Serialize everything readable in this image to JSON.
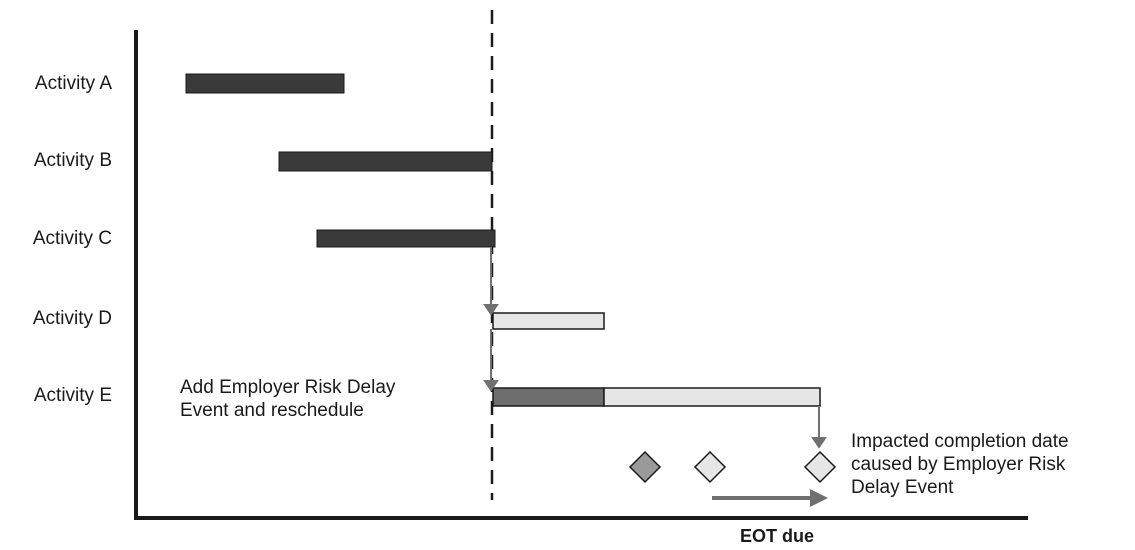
{
  "activities": [
    {
      "label": "Activity A"
    },
    {
      "label": "Activity B"
    },
    {
      "label": "Activity C"
    },
    {
      "label": "Activity D"
    },
    {
      "label": "Activity E"
    }
  ],
  "annotations": {
    "delay_event": "Add Employer Risk Delay\nEvent and reschedule",
    "impacted": "Impacted completion date\ncaused by Employer Risk\nDelay Event",
    "eot": "EOT due"
  },
  "colors": {
    "dark_bar": "#3a3a3a",
    "delay_bar": "#6e6e6e",
    "light_bar": "#e6e6e6",
    "milestone_dark": "#9a9a9a",
    "milestone_light": "#e6e6e6",
    "arrow": "#707070",
    "axis": "#1a1a1a"
  },
  "icons": {
    "milestones": [
      "diamond-milestone-dark",
      "diamond-milestone-light",
      "diamond-milestone-light"
    ],
    "connectors": [
      "down-arrow-connector",
      "right-arrow"
    ]
  }
}
